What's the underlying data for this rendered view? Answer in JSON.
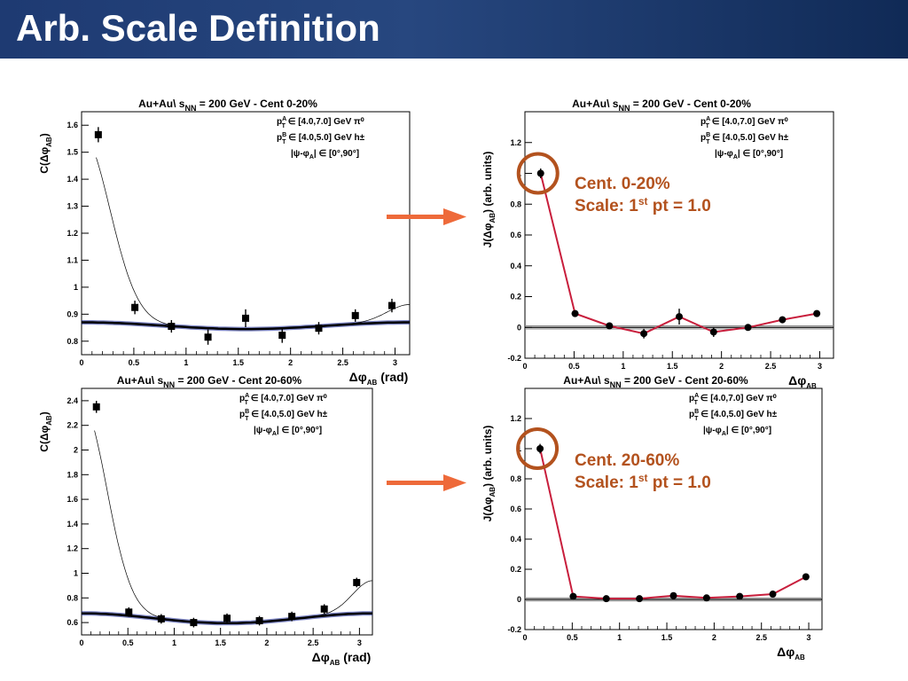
{
  "slide": {
    "title": "Arb. Scale Definition"
  },
  "colors": {
    "accent_red": "#c81e3c",
    "annotation": "#b3521e",
    "arrow": "#ee6a3a",
    "baseline_blue": "#1c2a9a"
  },
  "chart_data": [
    {
      "type": "scatter",
      "title": "Au+Au\\ s_NN = 200 GeV - Cent 0-20%",
      "ylabel": "C(Δφ_AB)",
      "xlabel": "Δφ_AB (rad)",
      "xlim": [
        0,
        3.14
      ],
      "ylim": [
        0.75,
        1.65
      ],
      "xticks": [
        "0",
        "0.5",
        "1",
        "1.5",
        "2",
        "2.5",
        "3"
      ],
      "yticks": [
        "0.8",
        "0.9",
        "1",
        "1.1",
        "1.2",
        "1.3",
        "1.4",
        "1.5",
        "1.6"
      ],
      "legend": [
        "p_T^A ∈ [4.0,7.0] GeV π⁰",
        "p_T^B ∈ [4.0,5.0] GeV h±",
        "|ψ-φ_A| ∈ [0°,90°]"
      ],
      "x": [
        0.16,
        0.51,
        0.86,
        1.21,
        1.57,
        1.92,
        2.27,
        2.62,
        2.97
      ],
      "y": [
        1.565,
        0.925,
        0.855,
        0.815,
        0.885,
        0.822,
        0.848,
        0.895,
        0.932
      ],
      "y_err": [
        0.015,
        0.012,
        0.01,
        0.015,
        0.02,
        0.015,
        0.01,
        0.01,
        0.012
      ],
      "fit_peak": 0.7,
      "flow_baseline": {
        "mid": 0.845,
        "edge": 0.87
      }
    },
    {
      "type": "line",
      "title": "Au+Au\\ s_NN = 200 GeV - Cent 0-20%",
      "ylabel": "J(Δφ_AB) (arb. units)",
      "xlabel": "Δφ_AB",
      "xlim": [
        0,
        3.14
      ],
      "ylim": [
        -0.2,
        1.4
      ],
      "xticks": [
        "0",
        "0.5",
        "1",
        "1.5",
        "2",
        "2.5",
        "3"
      ],
      "yticks": [
        "-0.2",
        "0",
        "0.2",
        "0.4",
        "0.6",
        "0.8",
        "1",
        "1.2"
      ],
      "legend": [
        "p_T^A ∈ [4.0,7.0] GeV π⁰",
        "p_T^B ∈ [4.0,5.0] GeV h±",
        "|ψ-φ_A| ∈ [0°,90°]"
      ],
      "x": [
        0.16,
        0.51,
        0.86,
        1.21,
        1.57,
        1.92,
        2.27,
        2.62,
        2.97
      ],
      "y": [
        1.0,
        0.09,
        0.01,
        -0.04,
        0.07,
        -0.03,
        0.0,
        0.05,
        0.09
      ],
      "y_err": [
        0.02,
        0.01,
        0.01,
        0.02,
        0.04,
        0.02,
        0.01,
        0.01,
        0.01
      ],
      "annotation": {
        "line1": "Cent. 0-20%",
        "line2a": "Scale: 1",
        "sup": "st",
        "line2b": " pt = 1.0"
      }
    },
    {
      "type": "scatter",
      "title": "Au+Au\\ s_NN = 200 GeV - Cent 20-60%",
      "ylabel": "C(Δφ_AB)",
      "xlabel": "Δφ_AB (rad)",
      "xlim": [
        0,
        3.14
      ],
      "ylim": [
        0.5,
        2.5
      ],
      "xticks": [
        "0",
        "0.5",
        "1",
        "1.5",
        "2",
        "2.5",
        "3"
      ],
      "yticks": [
        "0.6",
        "0.8",
        "1",
        "1.2",
        "1.4",
        "1.6",
        "1.8",
        "2",
        "2.2",
        "2.4"
      ],
      "legend": [
        "p_T^A ∈ [4.0,7.0] GeV π⁰",
        "p_T^B ∈ [4.0,5.0] GeV h±",
        "|ψ-φ_A| ∈ [0°,90°]"
      ],
      "x": [
        0.16,
        0.51,
        0.86,
        1.21,
        1.57,
        1.92,
        2.27,
        2.62,
        2.97
      ],
      "y": [
        2.35,
        0.685,
        0.63,
        0.6,
        0.635,
        0.615,
        0.65,
        0.71,
        0.925
      ],
      "y_err": [
        0.02,
        0.01,
        0.01,
        0.01,
        0.01,
        0.01,
        0.01,
        0.01,
        0.01
      ],
      "fit_peak": 1.7,
      "flow_baseline": {
        "mid": 0.595,
        "edge": 0.675
      }
    },
    {
      "type": "line",
      "title": "Au+Au\\ s_NN = 200 GeV - Cent 20-60%",
      "ylabel": "J(Δφ_AB) (arb. units)",
      "xlabel": "Δφ_AB",
      "xlim": [
        0,
        3.14
      ],
      "ylim": [
        -0.2,
        1.4
      ],
      "xticks": [
        "0",
        "0.5",
        "1",
        "1.5",
        "2",
        "2.5",
        "3"
      ],
      "yticks": [
        "-0.2",
        "0",
        "0.2",
        "0.4",
        "0.6",
        "0.8",
        "1",
        "1.2"
      ],
      "legend": [
        "p_T^A ∈ [4.0,7.0] GeV π⁰",
        "p_T^B ∈ [4.0,5.0] GeV h±",
        "|ψ-φ_A| ∈ [0°,90°]"
      ],
      "x": [
        0.16,
        0.51,
        0.86,
        1.21,
        1.57,
        1.92,
        2.27,
        2.62,
        2.97
      ],
      "y": [
        1.0,
        0.02,
        0.005,
        0.005,
        0.025,
        0.01,
        0.02,
        0.035,
        0.15
      ],
      "y_err": [
        0.02,
        0.01,
        0.01,
        0.01,
        0.01,
        0.01,
        0.01,
        0.01,
        0.01
      ],
      "annotation": {
        "line1": "Cent. 20-60%",
        "line2a": "Scale: 1",
        "sup": "st",
        "line2b": " pt = 1.0"
      }
    }
  ]
}
